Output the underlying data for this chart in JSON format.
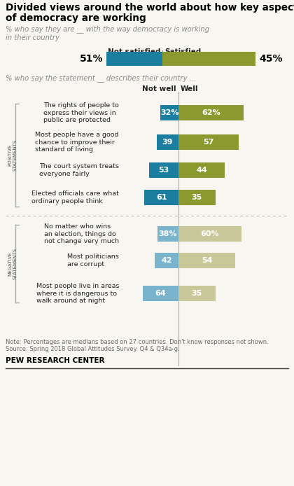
{
  "title_line1": "Divided views around the world about how key aspects",
  "title_line2": "of democracy are working",
  "subtitle1": "% who say they are __ with the way democracy is working\nin their country",
  "subtitle2": "% who say the statement __ describes their country ...",
  "top_bar": {
    "not_satisfied": 51,
    "satisfied": 45,
    "label_not": "Not satisfied",
    "label_sat": "Satisfied"
  },
  "positive_statements": {
    "label": "POSITIVE\nSTATEMENTS",
    "rows": [
      {
        "text": "The rights of people to\nexpress their views in\npublic are protected",
        "not_well": 32,
        "well": 62,
        "show_pct": true
      },
      {
        "text": "Most people have a good\nchance to improve their\nstandard of living",
        "not_well": 39,
        "well": 57,
        "show_pct": false
      },
      {
        "text": "The court system treats\neveryone fairly",
        "not_well": 53,
        "well": 44,
        "show_pct": false
      },
      {
        "text": "Elected officials care what\nordinary people think",
        "not_well": 61,
        "well": 35,
        "show_pct": false
      }
    ]
  },
  "negative_statements": {
    "label": "NEGATIVE\nSTATEMENTS",
    "rows": [
      {
        "text": "No matter who wins\nan election, things do\nnot change very much",
        "not_well": 38,
        "well": 60,
        "show_pct": true
      },
      {
        "text": "Most politicians\nare corrupt",
        "not_well": 42,
        "well": 54,
        "show_pct": false
      },
      {
        "text": "Most people live in areas\nwhere it is dangerous to\nwalk around at night",
        "not_well": 64,
        "well": 35,
        "show_pct": false
      }
    ]
  },
  "colors": {
    "dark_blue": "#1b7ea0",
    "dark_olive": "#8b9a2e",
    "light_blue": "#7ab3cc",
    "light_olive": "#c8c89a",
    "bg": "#f8f6f0"
  },
  "note": "Note: Percentages are medians based on 27 countries. Don't know responses not shown.\nSource: Spring 2018 Global Attitudes Survey. Q4 & Q34a-g.",
  "source": "PEW RESEARCH CENTER",
  "col_header_not": "Not well",
  "col_header_well": "Well"
}
